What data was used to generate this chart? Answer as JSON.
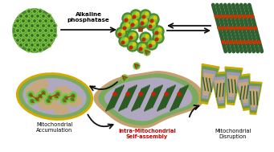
{
  "background_color": "#ffffff",
  "arrow_color": "#111111",
  "text_alkaline": "Alkaline\nphosphatase",
  "text_mito_accum": "Mitochondrial\nAccumulation",
  "text_intra": "Intra-Mitochondrial\nSelf-assembly",
  "text_intra_color": "#cc0000",
  "text_mito_dis": "Mitochondrial\nDisruption",
  "sphere_outer": "#4a8a30",
  "sphere_cell": "#7bc142",
  "sphere_cell_dark": "#3a6e20",
  "yellow_border": "#d4aa00",
  "mito_green": "#7aaa60",
  "mito_tan": "#c8a878",
  "mito_lavender": "#b0a8c0",
  "mito_dark_green": "#2a5a20",
  "mito_pink": "#d4a090",
  "red_accent": "#cc2200",
  "fiber_green": "#2e6030",
  "fiber_red": "#cc3300",
  "tan_mito": "#c4a070",
  "disrupted_yellow": "#c8aa00",
  "disrupted_green": "#6a9a50",
  "disrupted_lavender": "#a098b8"
}
